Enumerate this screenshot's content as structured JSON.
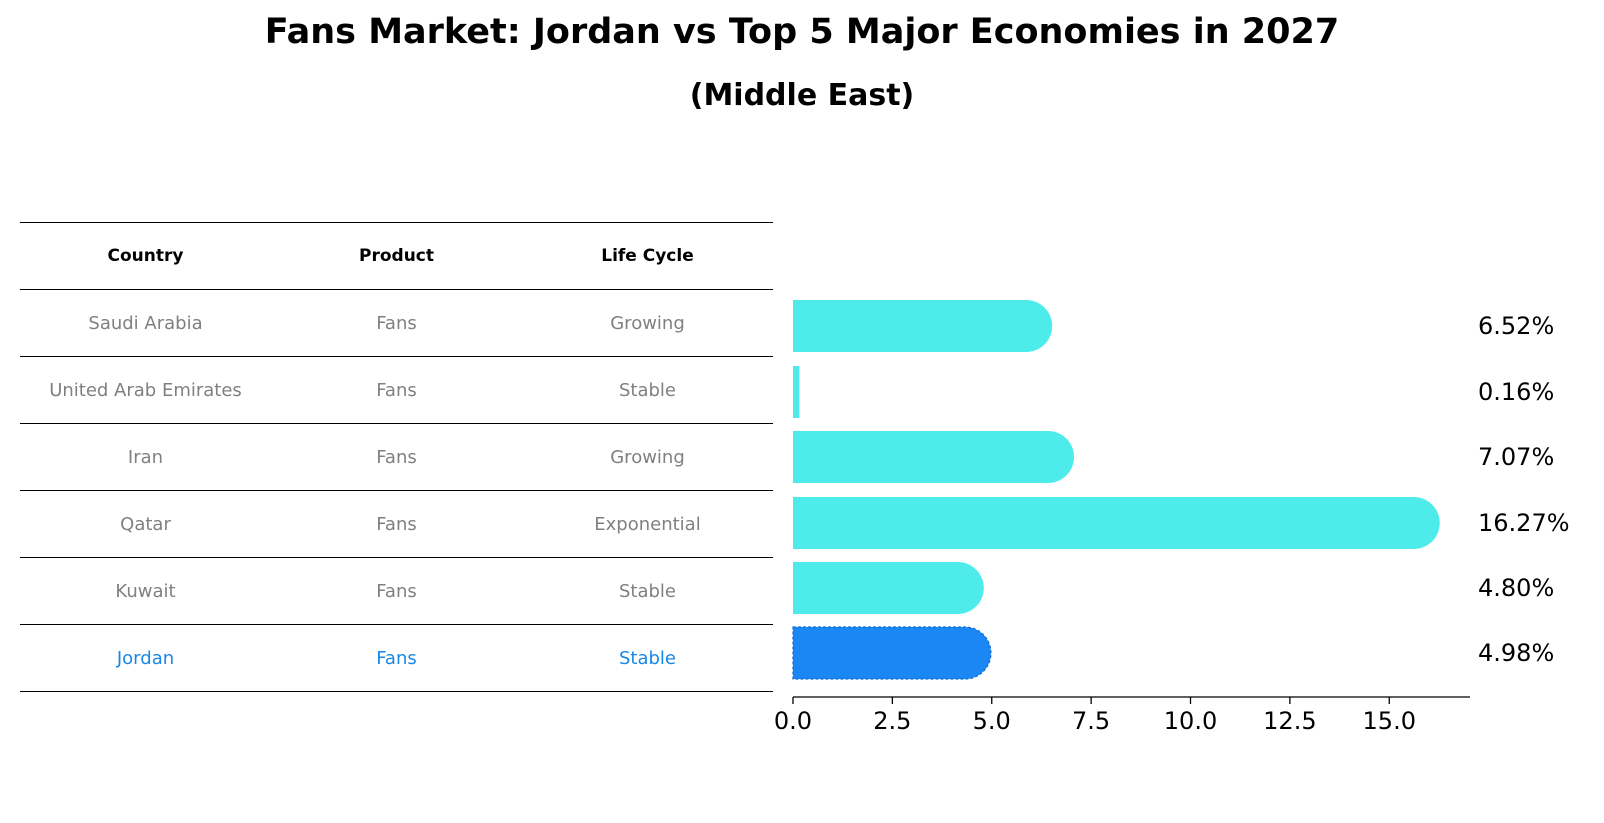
{
  "chart_data": {
    "type": "bar",
    "orientation": "horizontal",
    "title": "Fans Market: Jordan vs Top 5 Major Economies in 2027",
    "subtitle": "(Middle East)",
    "categories": [
      "Saudi Arabia",
      "United Arab Emirates",
      "Iran",
      "Qatar",
      "Kuwait",
      "Jordan"
    ],
    "values": [
      6.52,
      0.16,
      7.07,
      16.27,
      4.8,
      4.98
    ],
    "value_labels": [
      "6.52%",
      "0.16%",
      "7.07%",
      "16.27%",
      "4.80%",
      "4.98%"
    ],
    "xlim": [
      0,
      17
    ],
    "xticks": [
      0.0,
      2.5,
      5.0,
      7.5,
      10.0,
      12.5,
      15.0
    ],
    "xtick_labels": [
      "0.0",
      "2.5",
      "5.0",
      "7.5",
      "10.0",
      "12.5",
      "15.0"
    ],
    "grid": false,
    "highlight": "Jordan",
    "colors": {
      "default_bar": "#4deceb",
      "highlight_bar": "#1a87f5",
      "table_text": "#808080",
      "highlight_text": "#1a87e6"
    }
  },
  "table": {
    "headers": [
      "Country",
      "Product",
      "Life Cycle"
    ],
    "rows": [
      [
        "Saudi Arabia",
        "Fans",
        "Growing"
      ],
      [
        "United Arab Emirates",
        "Fans",
        "Stable"
      ],
      [
        "Iran",
        "Fans",
        "Growing"
      ],
      [
        "Qatar",
        "Fans",
        "Exponential"
      ],
      [
        "Kuwait",
        "Fans",
        "Stable"
      ],
      [
        "Jordan",
        "Fans",
        "Stable"
      ]
    ]
  }
}
